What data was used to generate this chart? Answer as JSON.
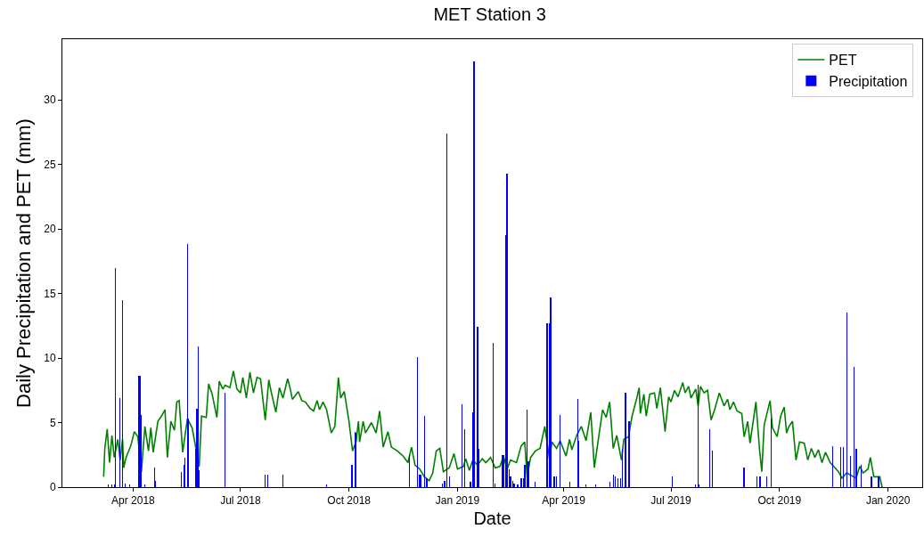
{
  "chart_data": {
    "type": "bar",
    "title": "MET Station 3",
    "xlabel": "Date",
    "ylabel": "Daily Precipitation and PET (mm)",
    "xlim": [
      "2018-01-31",
      "2020-01-30"
    ],
    "xticks": [
      {
        "value": "2018-04-01",
        "label": "Apr 2018"
      },
      {
        "value": "2018-07-01",
        "label": "Jul 2018"
      },
      {
        "value": "2018-10-01",
        "label": "Oct 2018"
      },
      {
        "value": "2019-01-01",
        "label": "Jan 2019"
      },
      {
        "value": "2019-04-01",
        "label": "Apr 2019"
      },
      {
        "value": "2019-07-01",
        "label": "Jul 2019"
      },
      {
        "value": "2019-10-01",
        "label": "Oct 2019"
      },
      {
        "value": "2020-01-01",
        "label": "Jan 2020"
      }
    ],
    "ylim": [
      0,
      34.7
    ],
    "yticks": [
      0,
      5,
      10,
      15,
      20,
      25,
      30
    ],
    "grid": false,
    "legend": "top right",
    "series": [
      {
        "name": "PET",
        "type": "line",
        "color": "#008000",
        "x": [
          "2018-03-07",
          "2018-03-08",
          "2018-03-10",
          "2018-03-12",
          "2018-03-14",
          "2018-03-16",
          "2018-03-19",
          "2018-03-21",
          "2018-03-23",
          "2018-03-24",
          "2018-03-26",
          "2018-03-30",
          "2018-04-02",
          "2018-04-05",
          "2018-04-08",
          "2018-04-11",
          "2018-04-14",
          "2018-04-16",
          "2018-04-18",
          "2018-04-22",
          "2018-04-25",
          "2018-04-28",
          "2018-04-30",
          "2018-05-03",
          "2018-05-06",
          "2018-05-08",
          "2018-05-10",
          "2018-05-13",
          "2018-05-17",
          "2018-05-21",
          "2018-05-27",
          "2018-05-29",
          "2018-06-02",
          "2018-06-04",
          "2018-06-07",
          "2018-06-11",
          "2018-06-13",
          "2018-06-16",
          "2018-06-18",
          "2018-06-22",
          "2018-06-25",
          "2018-06-28",
          "2018-07-01",
          "2018-07-03",
          "2018-07-06",
          "2018-07-09",
          "2018-07-12",
          "2018-07-15",
          "2018-07-18",
          "2018-07-22",
          "2018-07-25",
          "2018-07-27",
          "2018-07-31",
          "2018-08-03",
          "2018-08-06",
          "2018-08-10",
          "2018-08-12",
          "2018-08-14",
          "2018-08-19",
          "2018-08-22",
          "2018-08-25",
          "2018-08-29",
          "2018-09-01",
          "2018-09-04",
          "2018-09-06",
          "2018-09-09",
          "2018-09-12",
          "2018-09-14",
          "2018-09-16",
          "2018-09-19",
          "2018-09-22",
          "2018-09-24",
          "2018-09-27",
          "2018-10-01",
          "2018-10-04",
          "2018-10-07",
          "2018-10-09",
          "2018-10-10",
          "2018-10-13",
          "2018-10-15",
          "2018-10-20",
          "2018-10-24",
          "2018-10-27",
          "2018-10-30",
          "2018-11-03",
          "2018-11-06",
          "2018-11-11",
          "2018-11-16",
          "2018-11-20",
          "2018-11-23",
          "2018-11-26",
          "2018-11-30",
          "2018-12-04",
          "2018-12-08",
          "2018-12-11",
          "2018-12-14",
          "2018-12-17",
          "2018-12-20",
          "2018-12-25",
          "2018-12-29",
          "2019-01-01",
          "2019-01-06",
          "2019-01-08",
          "2019-01-11",
          "2019-01-14",
          "2019-01-18",
          "2019-01-22",
          "2019-01-25",
          "2019-01-29",
          "2019-02-02",
          "2019-02-06",
          "2019-02-09",
          "2019-02-12",
          "2019-02-15",
          "2019-02-20",
          "2019-02-24",
          "2019-02-27",
          "2019-03-01",
          "2019-03-04",
          "2019-03-08",
          "2019-03-12",
          "2019-03-16",
          "2019-03-20",
          "2019-03-22",
          "2019-03-26",
          "2019-03-29",
          "2019-04-03",
          "2019-04-06",
          "2019-04-08",
          "2019-04-12",
          "2019-04-16",
          "2019-04-20",
          "2019-04-24",
          "2019-04-27",
          "2019-05-04",
          "2019-05-07",
          "2019-05-10",
          "2019-05-13",
          "2019-05-16",
          "2019-05-20",
          "2019-05-22",
          "2019-05-26",
          "2019-05-29",
          "2019-06-02",
          "2019-06-04",
          "2019-06-05",
          "2019-06-08",
          "2019-06-10",
          "2019-06-13",
          "2019-06-17",
          "2019-06-19",
          "2019-06-22",
          "2019-06-26",
          "2019-06-29",
          "2019-07-01",
          "2019-07-04",
          "2019-07-07",
          "2019-07-11",
          "2019-07-13",
          "2019-07-16",
          "2019-07-18",
          "2019-07-22",
          "2019-07-24",
          "2019-07-26",
          "2019-07-29",
          "2019-08-01",
          "2019-08-04",
          "2019-08-07",
          "2019-08-11",
          "2019-08-15",
          "2019-08-18",
          "2019-08-20",
          "2019-08-23",
          "2019-08-26",
          "2019-08-30",
          "2019-09-01",
          "2019-09-04",
          "2019-09-06",
          "2019-09-09",
          "2019-09-11",
          "2019-09-14",
          "2019-09-16",
          "2019-09-18",
          "2019-09-23",
          "2019-09-25",
          "2019-09-29",
          "2019-10-02",
          "2019-10-05",
          "2019-10-07",
          "2019-10-09",
          "2019-10-12",
          "2019-10-15",
          "2019-10-18",
          "2019-10-22",
          "2019-10-25",
          "2019-10-28",
          "2019-10-31",
          "2019-11-03",
          "2019-11-06",
          "2019-11-09",
          "2019-11-13",
          "2019-11-16",
          "2019-11-20",
          "2019-11-23",
          "2019-11-27",
          "2019-12-01",
          "2019-12-05",
          "2019-12-08",
          "2019-12-11",
          "2019-12-15",
          "2019-12-17",
          "2019-12-20",
          "2019-12-23",
          "2019-12-25",
          "2019-12-27"
        ],
        "values": [
          0.8,
          3.0,
          4.5,
          1.9,
          4.0,
          2.3,
          3.7,
          2.1,
          3.7,
          1.5,
          2.3,
          3.2,
          4.3,
          3.9,
          1.2,
          4.7,
          2.8,
          4.6,
          2.7,
          5.1,
          5.5,
          6.0,
          2.3,
          5.1,
          4.4,
          6.6,
          6.7,
          2.7,
          5.3,
          4.6,
          1.6,
          5.5,
          5.4,
          8.0,
          7.2,
          5.4,
          8.2,
          7.6,
          7.9,
          7.7,
          9.0,
          7.6,
          7.3,
          8.5,
          6.9,
          8.9,
          7.3,
          8.5,
          8.4,
          5.2,
          8.3,
          7.4,
          5.8,
          7.7,
          6.9,
          8.4,
          7.7,
          6.8,
          7.4,
          6.7,
          6.6,
          6.1,
          5.9,
          6.7,
          6.0,
          6.6,
          6.0,
          5.1,
          4.2,
          4.7,
          8.5,
          6.9,
          7.4,
          5.1,
          2.8,
          3.5,
          5.1,
          3.5,
          5.1,
          4.2,
          5.0,
          4.2,
          5.9,
          3.1,
          4.3,
          3.1,
          2.8,
          2.4,
          1.9,
          3.1,
          1.7,
          1.4,
          0.8,
          0.5,
          1.1,
          2.8,
          3.0,
          1.2,
          1.5,
          2.6,
          1.4,
          1.6,
          2.2,
          1.3,
          2.1,
          1.7,
          2.2,
          1.9,
          2.3,
          1.5,
          1.6,
          2.4,
          1.4,
          2.1,
          1.9,
          3.2,
          3.5,
          0.8,
          2.3,
          2.8,
          3.0,
          4.7,
          2.2,
          3.5,
          3.0,
          3.6,
          2.4,
          3.7,
          2.9,
          4.0,
          4.7,
          3.6,
          5.8,
          1.5,
          6.0,
          5.4,
          6.6,
          3.0,
          4.0,
          2.1,
          3.7,
          3.9,
          5.5,
          6.9,
          7.7,
          5.7,
          7.2,
          5.5,
          7.2,
          7.3,
          6.1,
          7.7,
          4.3,
          7.0,
          6.6,
          7.5,
          7.0,
          8.1,
          7.3,
          7.8,
          6.9,
          7.6,
          6.3,
          7.8,
          7.3,
          7.5,
          5.2,
          6.0,
          7.3,
          6.3,
          6.8,
          6.0,
          6.6,
          5.9,
          5.7,
          3.9,
          5.1,
          3.4,
          5.3,
          6.6,
          3.0,
          1.2,
          4.8,
          6.7,
          4.6,
          3.9,
          5.5,
          6.2,
          4.2,
          4.7,
          5.1,
          2.1,
          3.5,
          3.4,
          2.1,
          3.0,
          2.3,
          2.9,
          1.9,
          2.7,
          1.9,
          1.6,
          1.2,
          0.7,
          1.1,
          0.9,
          0.7,
          1.6,
          1.1,
          1.4,
          2.3,
          0.8,
          0.8,
          0.8,
          0.0
        ]
      },
      {
        "name": "Precipitation",
        "type": "bar",
        "color": "#0000ff",
        "x": [
          "2018-03-11",
          "2018-03-14",
          "2018-03-16",
          "2018-03-17",
          "2018-03-21",
          "2018-03-23",
          "2018-03-25",
          "2018-03-29",
          "2018-04-06",
          "2018-04-07",
          "2018-04-08",
          "2018-04-11",
          "2018-04-19",
          "2018-04-20",
          "2018-05-12",
          "2018-05-14",
          "2018-05-15",
          "2018-05-17",
          "2018-05-18",
          "2018-05-24",
          "2018-05-25",
          "2018-05-26",
          "2018-05-27",
          "2018-06-18",
          "2018-07-22",
          "2018-07-24",
          "2018-08-06",
          "2018-09-12",
          "2018-10-03",
          "2018-10-04",
          "2018-10-06",
          "2018-10-07",
          "2018-11-21",
          "2018-11-28",
          "2018-11-30",
          "2018-12-01",
          "2018-12-04",
          "2018-12-06",
          "2018-12-19",
          "2018-12-21",
          "2018-12-23",
          "2018-12-25",
          "2019-01-05",
          "2019-01-07",
          "2019-01-12",
          "2019-01-14",
          "2019-01-15",
          "2019-01-18",
          "2019-01-19",
          "2019-01-31",
          "2019-02-02",
          "2019-02-08",
          "2019-02-09",
          "2019-02-11",
          "2019-02-12",
          "2019-02-14",
          "2019-02-15",
          "2019-02-17",
          "2019-02-18",
          "2019-02-21",
          "2019-02-24",
          "2019-02-26",
          "2019-02-27",
          "2019-03-01",
          "2019-03-02",
          "2019-03-08",
          "2019-03-18",
          "2019-03-20",
          "2019-03-21",
          "2019-03-24",
          "2019-03-26",
          "2019-03-29",
          "2019-04-06",
          "2019-04-13",
          "2019-04-14",
          "2019-04-20",
          "2019-04-28",
          "2019-05-10",
          "2019-05-13",
          "2019-05-15",
          "2019-05-17",
          "2019-05-19",
          "2019-05-21",
          "2019-05-23",
          "2019-05-24",
          "2019-05-26",
          "2019-05-27",
          "2019-07-02",
          "2019-07-22",
          "2019-07-24",
          "2019-07-25",
          "2019-08-03",
          "2019-08-05",
          "2019-09-01",
          "2019-09-12",
          "2019-09-14",
          "2019-09-15",
          "2019-09-20",
          "2019-09-24",
          "2019-11-15",
          "2019-11-22",
          "2019-11-24",
          "2019-11-27",
          "2019-11-30",
          "2019-12-03",
          "2019-12-05",
          "2019-12-09",
          "2019-12-18",
          "2019-12-24"
        ],
        "values": [
          0.2,
          0.2,
          0.2,
          17.0,
          6.9,
          14.5,
          0.3,
          0.2,
          8.6,
          8.6,
          5.6,
          0.2,
          1.5,
          0.5,
          1.2,
          1.7,
          2.3,
          18.8,
          5.3,
          3.0,
          6.1,
          10.9,
          1.3,
          7.3,
          1.0,
          1.0,
          1.0,
          0.2,
          1.7,
          1.7,
          4.3,
          4.2,
          2.5,
          10.1,
          1.0,
          1.0,
          5.5,
          0.7,
          0.3,
          0.5,
          27.4,
          0.8,
          6.4,
          4.5,
          0.4,
          5.8,
          33.0,
          12.4,
          3.0,
          11.2,
          0.3,
          2.5,
          2.5,
          19.5,
          24.3,
          1.4,
          0.8,
          0.5,
          0.3,
          0.2,
          0.7,
          0.7,
          1.7,
          6.0,
          2.0,
          0.4,
          12.7,
          12.7,
          14.7,
          0.8,
          0.8,
          5.6,
          0.4,
          6.8,
          3.6,
          0.2,
          0.2,
          0.4,
          1.0,
          0.8,
          0.7,
          0.7,
          3.0,
          7.3,
          7.3,
          5.1,
          5.1,
          0.8,
          0.2,
          7.9,
          0.2,
          4.5,
          2.8,
          1.5,
          0.8,
          0.8,
          0.8,
          0.8,
          5.3,
          3.2,
          3.1,
          3.1,
          13.5,
          2.4,
          9.3,
          3.0,
          1.7,
          0.8,
          0.8
        ]
      }
    ]
  }
}
